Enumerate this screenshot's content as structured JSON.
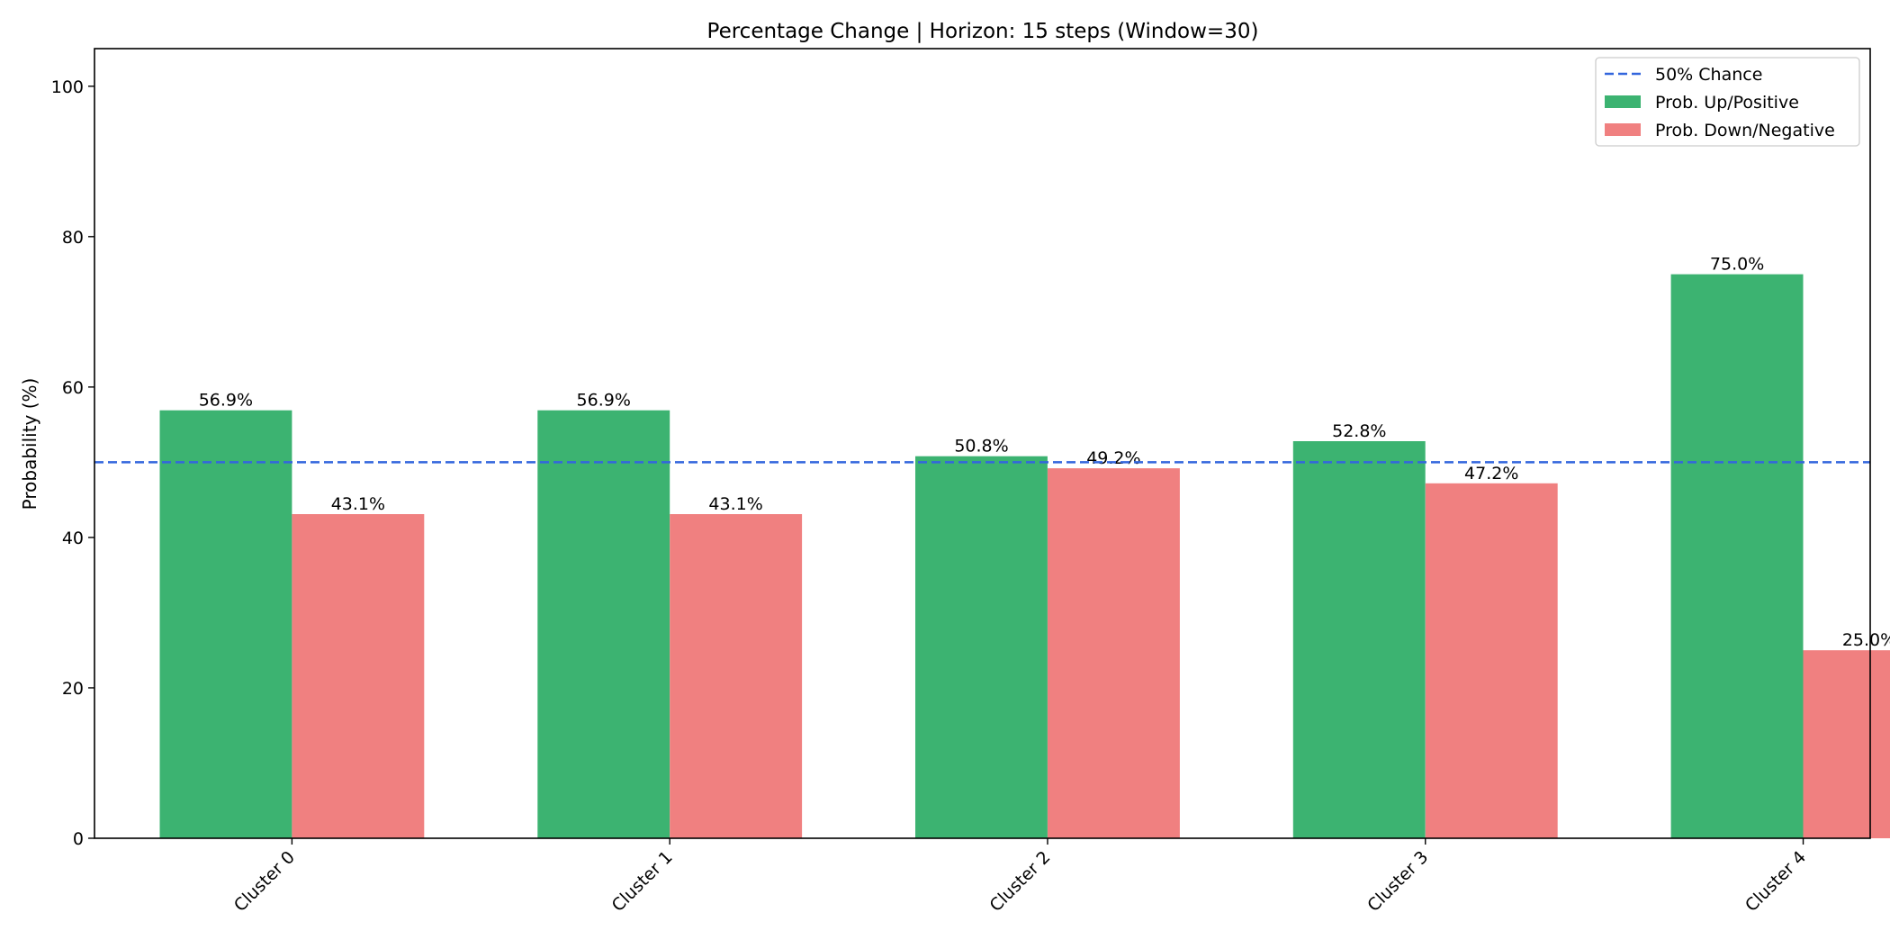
{
  "chart_data": {
    "type": "bar",
    "title": "Percentage Change | Horizon: 15 steps (Window=30)",
    "xlabel": "",
    "ylabel": "Probability (%)",
    "ylim": [
      0,
      105
    ],
    "yticks": [
      0,
      20,
      40,
      60,
      80,
      100
    ],
    "categories": [
      "Cluster 0",
      "Cluster 1",
      "Cluster 2",
      "Cluster 3",
      "Cluster 4"
    ],
    "series": [
      {
        "name": "Prob. Up/Positive",
        "color": "#3cb371",
        "values": [
          56.9,
          56.9,
          50.8,
          52.8,
          75.0
        ],
        "labels": [
          "56.9%",
          "56.9%",
          "50.8%",
          "52.8%",
          "75.0%"
        ]
      },
      {
        "name": "Prob. Down/Negative",
        "color": "#f08080",
        "values": [
          43.1,
          43.1,
          49.2,
          47.2,
          25.0
        ],
        "labels": [
          "43.1%",
          "43.1%",
          "49.2%",
          "47.2%",
          "25.0%"
        ]
      }
    ],
    "reference_line": {
      "name": "50% Chance",
      "value": 50,
      "color": "#3366dd",
      "style": "dashed"
    },
    "legend": {
      "placement": "top-right",
      "items": [
        "50% Chance",
        "Prob. Up/Positive",
        "Prob. Down/Negative"
      ]
    },
    "grid": false
  }
}
